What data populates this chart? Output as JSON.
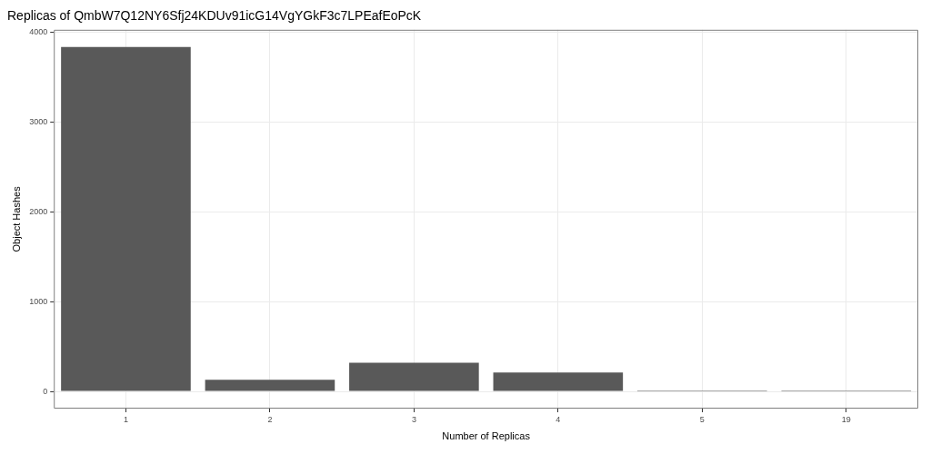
{
  "chart_data": {
    "type": "bar",
    "title": "Replicas of QmbW7Q12NY6Sfj24KDUv91icG14VgYGkF3c7LPEafEoPcK",
    "xlabel": "Number of Replicas",
    "ylabel": "Object Hashes",
    "categories": [
      "1",
      "2",
      "3",
      "4",
      "5",
      "19"
    ],
    "values": [
      3840,
      130,
      320,
      210,
      10,
      10
    ],
    "color": "#595959",
    "ylim": [
      -192,
      4032
    ],
    "yticks": [
      0,
      1000,
      2000,
      3000,
      4000
    ],
    "grid": true,
    "legend": false
  }
}
